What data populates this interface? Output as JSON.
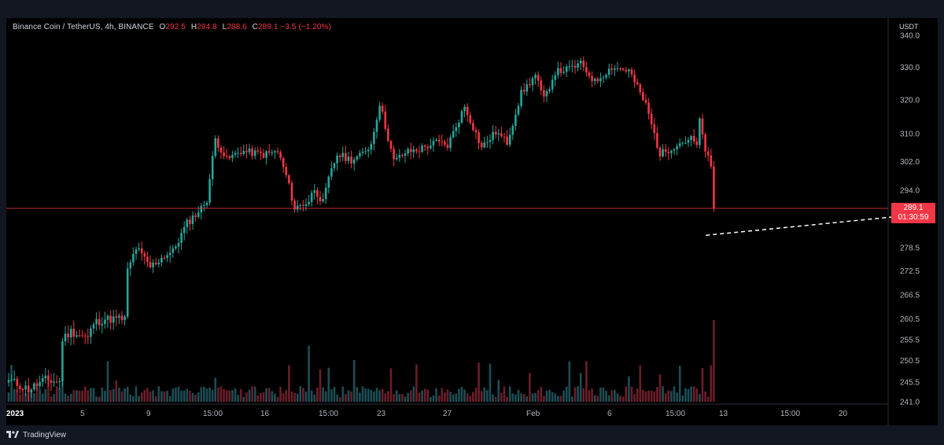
{
  "legend": {
    "symbol": "Binance Coin / TetherUS, 4h, BINANCE",
    "o_label": "O",
    "o_value": "292.5",
    "h_label": "H",
    "h_value": "294.8",
    "l_label": "L",
    "l_value": "288.6",
    "c_label": "C",
    "c_value": "289.1",
    "change": "−3.5 (−1.20%)"
  },
  "price_axis": {
    "unit": "USDT",
    "ticks": [
      "340.0",
      "330.0",
      "320.0",
      "310.0",
      "302.0",
      "294.0",
      "278.5",
      "272.5",
      "266.5",
      "260.5",
      "255.5",
      "250.5",
      "245.5",
      "241.0"
    ]
  },
  "current_price": {
    "value": "289.1",
    "countdown": "01:30:59"
  },
  "time_axis": {
    "ticks": [
      "2023",
      "5",
      "9",
      "15:00",
      "16",
      "15:00",
      "23",
      "27",
      "Feb",
      "6",
      "15:00",
      "13",
      "15:00",
      "20"
    ]
  },
  "footer": {
    "brand": "TradingView"
  },
  "colors": {
    "up": "#26a69a",
    "down": "#f23645",
    "background": "#000000",
    "trendline": "#ffffff"
  },
  "chart_data": {
    "type": "candlestick",
    "symbol": "Binance Coin / TetherUS",
    "interval": "4h",
    "exchange": "BINANCE",
    "y_scale": "log",
    "ylim": [
      241.0,
      340.0
    ],
    "trendline_points": [
      [
        246.2,
        281.8
      ],
      [
        600,
        309.0
      ]
    ],
    "volume": true,
    "anchors": [
      [
        0,
        246.0
      ],
      [
        7,
        243.8
      ],
      [
        13,
        246.0
      ],
      [
        18,
        245.5
      ],
      [
        19,
        255.6
      ],
      [
        22,
        257.5
      ],
      [
        28,
        255.8
      ],
      [
        30,
        259.5
      ],
      [
        34,
        260.5
      ],
      [
        41,
        260.5
      ],
      [
        42,
        272.5
      ],
      [
        45,
        278.5
      ],
      [
        50,
        273.5
      ],
      [
        55,
        276.5
      ],
      [
        58,
        277.5
      ],
      [
        63,
        285.0
      ],
      [
        68,
        289.0
      ],
      [
        70,
        291.5
      ],
      [
        73,
        308.5
      ],
      [
        77,
        302.5
      ],
      [
        82,
        305.0
      ],
      [
        90,
        304.0
      ],
      [
        95,
        304.8
      ],
      [
        98,
        298.0
      ],
      [
        101,
        289.0
      ],
      [
        106,
        291.0
      ],
      [
        108,
        294.5
      ],
      [
        111,
        290.5
      ],
      [
        113,
        297.0
      ],
      [
        116,
        304.0
      ],
      [
        121,
        302.5
      ],
      [
        124,
        303.5
      ],
      [
        128,
        307.0
      ],
      [
        131,
        319.0
      ],
      [
        136,
        302.0
      ],
      [
        140,
        304.5
      ],
      [
        145,
        305.5
      ],
      [
        151,
        307.5
      ],
      [
        155,
        306.5
      ],
      [
        161,
        318.0
      ],
      [
        167,
        306.0
      ],
      [
        172,
        310.5
      ],
      [
        176,
        307.5
      ],
      [
        181,
        322.0
      ],
      [
        186,
        327.5
      ],
      [
        189,
        320.0
      ],
      [
        193,
        328.5
      ],
      [
        198,
        329.5
      ],
      [
        202,
        331.0
      ],
      [
        207,
        325.5
      ],
      [
        213,
        330.0
      ],
      [
        219,
        329.0
      ],
      [
        225,
        318.5
      ],
      [
        230,
        304.0
      ],
      [
        236,
        307.0
      ],
      [
        241,
        308.5
      ],
      [
        243,
        306.5
      ],
      [
        244,
        313.5
      ],
      [
        246,
        305.5
      ],
      [
        248,
        300.0
      ],
      [
        249,
        289.1
      ]
    ]
  }
}
